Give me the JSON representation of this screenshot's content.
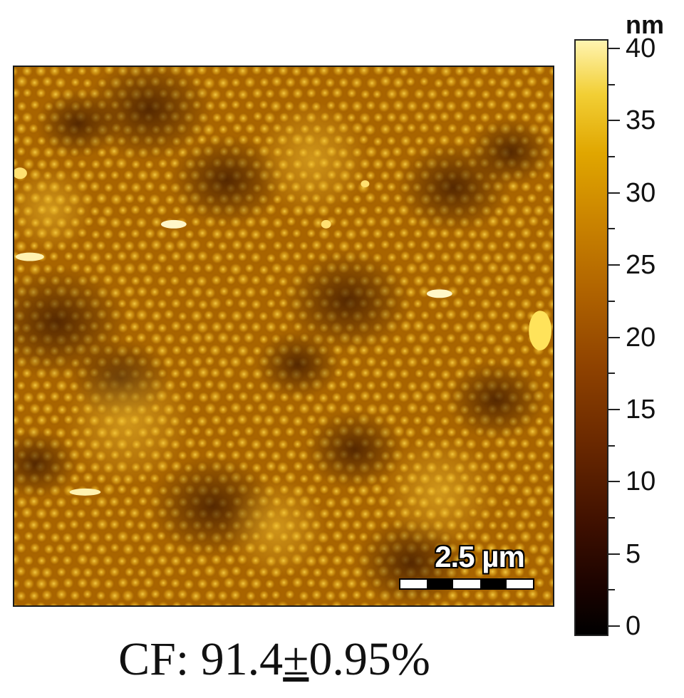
{
  "afm_image": {
    "scale_bar_label": "2.5 µm"
  },
  "colorbar": {
    "unit": "nm",
    "min": 0,
    "max": 40,
    "tick_labels": [
      "40",
      "35",
      "30",
      "25",
      "20",
      "15",
      "10",
      "5",
      "0"
    ]
  },
  "caption": {
    "prefix": "CF: 91.4",
    "plus_minus": "±",
    "suffix": "0.95%"
  }
}
